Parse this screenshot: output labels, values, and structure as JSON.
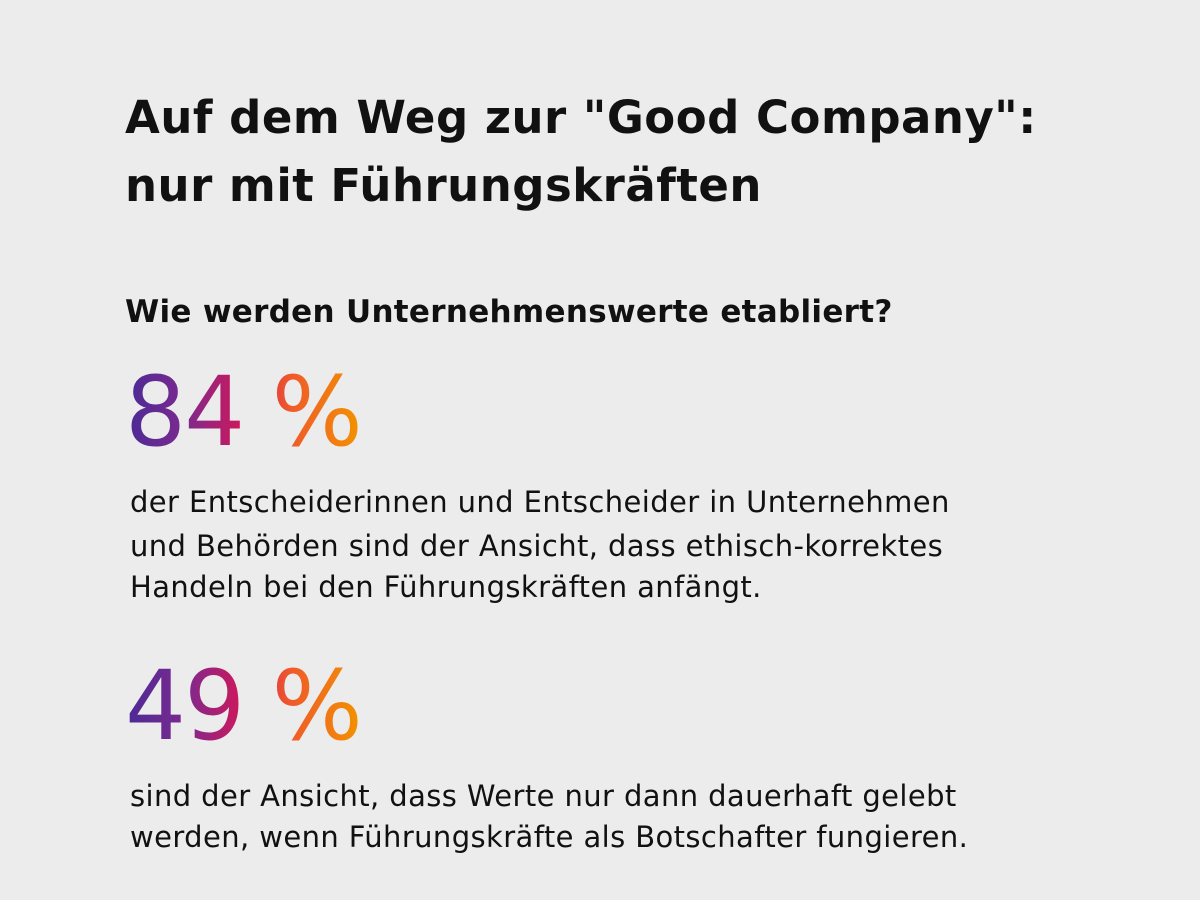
{
  "header": {
    "title_lines": [
      "Auf dem Weg zur \"Good Company\":",
      "nur mit Führungskräften"
    ],
    "subtitle": "Wie werden Unternehmenswerte etabliert?"
  },
  "stats": [
    {
      "value": "84 %",
      "description_lines": [
        "der Entscheiderinnen und Entscheider in Unternehmen",
        "und Behörden sind der Ansicht, dass ethisch-korrektes",
        "Handeln bei den Führungskräften anfängt."
      ]
    },
    {
      "value": "49 %",
      "description_lines": [
        "sind der Ansicht, dass Werte nur dann dauerhaft gelebt",
        "werden, wenn Führungskräfte als Botschafter fungieren."
      ]
    }
  ]
}
